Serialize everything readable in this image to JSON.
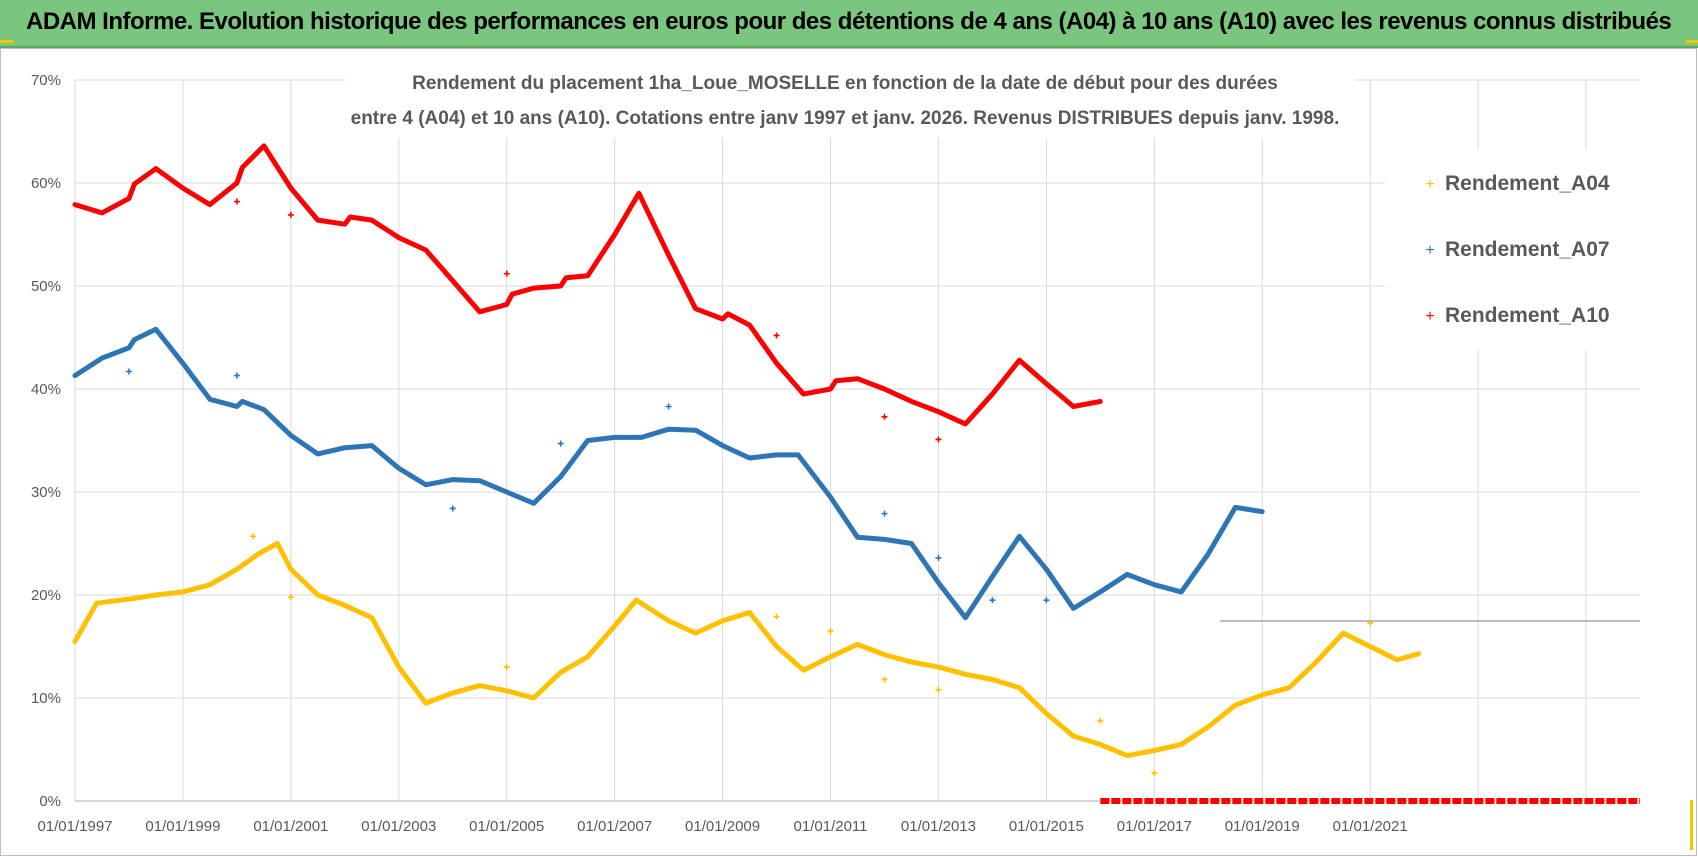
{
  "header": {
    "title": "ADAM Informe. Evolution historique des performances en euros pour des détentions de 4 ans (A04) à 10 ans (A10) avec les revenus connus distribués"
  },
  "colors": {
    "banner": "#7bc67e",
    "A04": "#ffc000",
    "A07": "#2e75b6",
    "A10": "#ff0000",
    "grid": "#d9d9d9"
  },
  "chart_data": {
    "type": "scatter",
    "title": "Rendement du placement 1ha_Loue_MOSELLE en fonction de la date de début pour des durées",
    "subtitle": "entre 4 (A04) et 10 ans (A10). Cotations entre janv 1997 et janv. 2026. Revenus DISTRIBUES depuis janv. 1998.",
    "xlabel": "",
    "ylabel": "",
    "x_unit": "year",
    "xlim": [
      1997.0,
      2026.0
    ],
    "ylim": [
      0,
      70
    ],
    "y_ticks": [
      "0%",
      "10%",
      "20%",
      "30%",
      "40%",
      "50%",
      "60%",
      "70%"
    ],
    "y_tick_values": [
      0,
      10,
      20,
      30,
      40,
      50,
      60,
      70
    ],
    "x_ticks": [
      "01/01/1997",
      "01/01/1999",
      "01/01/2001",
      "01/01/2003",
      "01/01/2005",
      "01/01/2007",
      "01/01/2009",
      "01/01/2011",
      "01/01/2013",
      "01/01/2015",
      "01/01/2017",
      "01/01/2019",
      "01/01/2021"
    ],
    "x_tick_values": [
      1997,
      1999,
      2001,
      2003,
      2005,
      2007,
      2009,
      2011,
      2013,
      2015,
      2017,
      2019,
      2021
    ],
    "x_grid_extra": [
      2023,
      2025
    ],
    "legend_position": "right",
    "series": [
      {
        "name": "Rendement_A04",
        "color": "#ffc000",
        "points": [
          [
            1997.0,
            15.5
          ],
          [
            1997.4,
            19.2
          ],
          [
            1998.0,
            19.6
          ],
          [
            1998.5,
            20.0
          ],
          [
            1999.0,
            20.3
          ],
          [
            1999.5,
            21.0
          ],
          [
            2000.0,
            22.5
          ],
          [
            2000.4,
            24.0
          ],
          [
            2000.75,
            25.0
          ],
          [
            2001.0,
            22.5
          ],
          [
            2001.5,
            20.0
          ],
          [
            2002.0,
            19.0
          ],
          [
            2002.5,
            17.8
          ],
          [
            2003.0,
            13.0
          ],
          [
            2003.5,
            9.5
          ],
          [
            2004.0,
            10.5
          ],
          [
            2004.5,
            11.2
          ],
          [
            2005.0,
            10.7
          ],
          [
            2005.5,
            10.0
          ],
          [
            2006.0,
            12.5
          ],
          [
            2006.5,
            14.0
          ],
          [
            2007.0,
            17.0
          ],
          [
            2007.4,
            19.5
          ],
          [
            2008.0,
            17.5
          ],
          [
            2008.5,
            16.3
          ],
          [
            2009.0,
            17.5
          ],
          [
            2009.5,
            18.3
          ],
          [
            2010.0,
            15.0
          ],
          [
            2010.5,
            12.7
          ],
          [
            2011.0,
            14.0
          ],
          [
            2011.5,
            15.2
          ],
          [
            2012.0,
            14.2
          ],
          [
            2012.5,
            13.5
          ],
          [
            2013.0,
            13.0
          ],
          [
            2013.5,
            12.3
          ],
          [
            2014.0,
            11.8
          ],
          [
            2014.5,
            11.0
          ],
          [
            2015.0,
            8.5
          ],
          [
            2015.5,
            6.3
          ],
          [
            2016.0,
            5.5
          ],
          [
            2016.5,
            4.4
          ],
          [
            2017.0,
            4.9
          ],
          [
            2017.5,
            5.5
          ],
          [
            2018.0,
            7.2
          ],
          [
            2018.5,
            9.3
          ],
          [
            2019.0,
            10.3
          ],
          [
            2019.5,
            11.0
          ],
          [
            2020.0,
            13.5
          ],
          [
            2020.5,
            16.3
          ],
          [
            2021.0,
            15.0
          ],
          [
            2021.5,
            13.7
          ],
          [
            2021.9,
            14.3
          ]
        ],
        "outliers": [
          [
            2000.3,
            25.7
          ],
          [
            2001.0,
            19.8
          ],
          [
            2005.0,
            13.0
          ],
          [
            2010.0,
            17.9
          ],
          [
            2011.0,
            16.5
          ],
          [
            2012.0,
            11.8
          ],
          [
            2013.0,
            10.8
          ],
          [
            2016.0,
            7.8
          ],
          [
            2017.0,
            2.7
          ],
          [
            2021.0,
            17.3
          ]
        ]
      },
      {
        "name": "Rendement_A07",
        "color": "#2e75b6",
        "points": [
          [
            1997.0,
            41.3
          ],
          [
            1997.5,
            43.0
          ],
          [
            1998.0,
            44.0
          ],
          [
            1998.1,
            44.8
          ],
          [
            1998.5,
            45.8
          ],
          [
            1999.0,
            42.5
          ],
          [
            1999.5,
            39.0
          ],
          [
            2000.0,
            38.3
          ],
          [
            2000.1,
            38.8
          ],
          [
            2000.5,
            38.0
          ],
          [
            2001.0,
            35.5
          ],
          [
            2001.5,
            33.7
          ],
          [
            2002.0,
            34.3
          ],
          [
            2002.5,
            34.5
          ],
          [
            2003.0,
            32.3
          ],
          [
            2003.5,
            30.7
          ],
          [
            2004.0,
            31.2
          ],
          [
            2004.5,
            31.1
          ],
          [
            2005.0,
            30.0
          ],
          [
            2005.5,
            28.9
          ],
          [
            2006.0,
            31.5
          ],
          [
            2006.5,
            35.0
          ],
          [
            2007.0,
            35.3
          ],
          [
            2007.5,
            35.3
          ],
          [
            2008.0,
            36.1
          ],
          [
            2008.5,
            36.0
          ],
          [
            2009.0,
            34.5
          ],
          [
            2009.5,
            33.3
          ],
          [
            2010.0,
            33.6
          ],
          [
            2010.4,
            33.6
          ],
          [
            2011.0,
            29.5
          ],
          [
            2011.5,
            25.6
          ],
          [
            2012.0,
            25.4
          ],
          [
            2012.5,
            25.0
          ],
          [
            2013.0,
            21.2
          ],
          [
            2013.5,
            17.8
          ],
          [
            2014.0,
            21.8
          ],
          [
            2014.5,
            25.7
          ],
          [
            2015.0,
            22.5
          ],
          [
            2015.5,
            18.7
          ],
          [
            2016.0,
            20.3
          ],
          [
            2016.5,
            22.0
          ],
          [
            2017.0,
            21.0
          ],
          [
            2017.5,
            20.3
          ],
          [
            2018.0,
            24.0
          ],
          [
            2018.5,
            28.5
          ],
          [
            2019.0,
            28.1
          ]
        ],
        "outliers": [
          [
            1998.0,
            41.7
          ],
          [
            2000.0,
            41.3
          ],
          [
            2004.0,
            28.4
          ],
          [
            2006.0,
            34.7
          ],
          [
            2008.0,
            38.3
          ],
          [
            2012.0,
            27.9
          ],
          [
            2013.0,
            23.6
          ],
          [
            2014.0,
            19.5
          ],
          [
            2015.0,
            19.5
          ]
        ]
      },
      {
        "name": "Rendement_A10",
        "color": "#ff0000",
        "points": [
          [
            1997.0,
            57.9
          ],
          [
            1997.5,
            57.1
          ],
          [
            1998.0,
            58.5
          ],
          [
            1998.1,
            59.9
          ],
          [
            1998.5,
            61.4
          ],
          [
            1999.0,
            59.5
          ],
          [
            1999.5,
            57.9
          ],
          [
            2000.0,
            60.0
          ],
          [
            2000.1,
            61.5
          ],
          [
            2000.5,
            63.6
          ],
          [
            2001.0,
            59.5
          ],
          [
            2001.5,
            56.4
          ],
          [
            2002.0,
            56.0
          ],
          [
            2002.1,
            56.7
          ],
          [
            2002.5,
            56.4
          ],
          [
            2003.0,
            54.7
          ],
          [
            2003.5,
            53.5
          ],
          [
            2004.0,
            50.5
          ],
          [
            2004.5,
            47.5
          ],
          [
            2005.0,
            48.2
          ],
          [
            2005.1,
            49.2
          ],
          [
            2005.5,
            49.8
          ],
          [
            2006.0,
            50.0
          ],
          [
            2006.1,
            50.8
          ],
          [
            2006.5,
            51.0
          ],
          [
            2007.0,
            55.0
          ],
          [
            2007.45,
            59.0
          ],
          [
            2008.0,
            53.0
          ],
          [
            2008.5,
            47.8
          ],
          [
            2009.0,
            46.8
          ],
          [
            2009.1,
            47.3
          ],
          [
            2009.5,
            46.2
          ],
          [
            2010.0,
            42.5
          ],
          [
            2010.5,
            39.5
          ],
          [
            2011.0,
            40.0
          ],
          [
            2011.1,
            40.8
          ],
          [
            2011.5,
            41.0
          ],
          [
            2012.0,
            40.0
          ],
          [
            2012.5,
            38.8
          ],
          [
            2013.0,
            37.8
          ],
          [
            2013.5,
            36.6
          ],
          [
            2014.0,
            39.5
          ],
          [
            2014.5,
            42.8
          ],
          [
            2015.0,
            40.5
          ],
          [
            2015.5,
            38.3
          ],
          [
            2016.0,
            38.8
          ]
        ],
        "outliers": [
          [
            2000.0,
            58.2
          ],
          [
            2001.0,
            56.9
          ],
          [
            2005.0,
            51.2
          ],
          [
            2010.0,
            45.2
          ],
          [
            2012.0,
            37.3
          ],
          [
            2013.0,
            35.1
          ]
        ],
        "zero_from": 2016.0,
        "zero_to": 2026.0
      }
    ]
  }
}
